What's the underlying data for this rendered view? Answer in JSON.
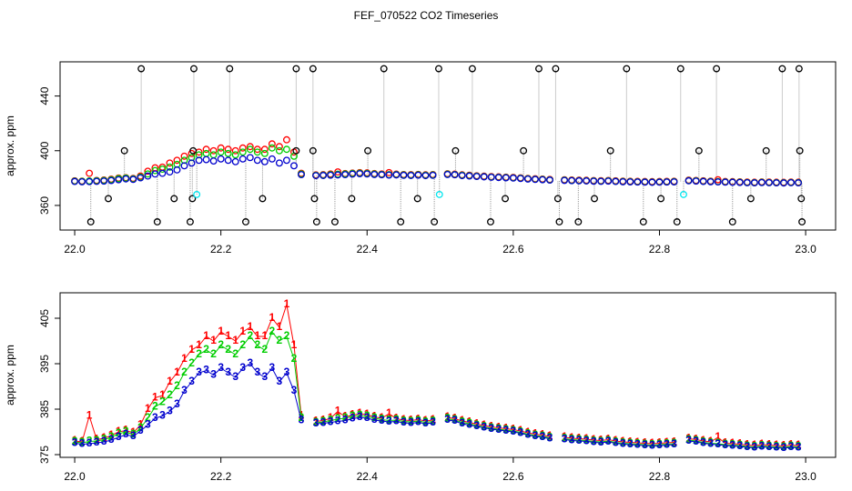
{
  "title": "FEF_070522  CO2 Timeseries",
  "chart_data": [
    {
      "type": "scatter",
      "ylabel": "approx. ppm",
      "xlim": [
        21.98,
        23.041
      ],
      "ylim": [
        342,
        465
      ],
      "xticks": [
        {
          "value": 22.0,
          "label": "22.0"
        },
        {
          "value": 22.2,
          "label": "22.2"
        },
        {
          "value": 22.4,
          "label": "22.4"
        },
        {
          "value": 22.6,
          "label": "22.6"
        },
        {
          "value": 22.8,
          "label": "22.8"
        },
        {
          "value": 23.0,
          "label": "23.0"
        }
      ],
      "yticks": [
        360,
        400,
        440
      ],
      "x": [
        22.0,
        22.01,
        22.02,
        22.03,
        22.04,
        22.05,
        22.06,
        22.07,
        22.08,
        22.09,
        22.1,
        22.11,
        22.12,
        22.13,
        22.14,
        22.15,
        22.16,
        22.17,
        22.18,
        22.19,
        22.2,
        22.21,
        22.22,
        22.23,
        22.24,
        22.25,
        22.26,
        22.27,
        22.28,
        22.29,
        22.3,
        22.31,
        22.32,
        22.33,
        22.34,
        22.35,
        22.36,
        22.37,
        22.38,
        22.39,
        22.4,
        22.41,
        22.42,
        22.43,
        22.44,
        22.45,
        22.46,
        22.47,
        22.48,
        22.49,
        22.5,
        22.51,
        22.52,
        22.53,
        22.54,
        22.55,
        22.56,
        22.57,
        22.58,
        22.59,
        22.6,
        22.61,
        22.62,
        22.63,
        22.64,
        22.65,
        22.66,
        22.67,
        22.68,
        22.69,
        22.7,
        22.71,
        22.72,
        22.73,
        22.74,
        22.75,
        22.76,
        22.77,
        22.78,
        22.79,
        22.8,
        22.81,
        22.82,
        22.83,
        22.84,
        22.85,
        22.86,
        22.87,
        22.88,
        22.89,
        22.9,
        22.91,
        22.92,
        22.93,
        22.94,
        22.95,
        22.96,
        22.97,
        22.98,
        22.99
      ],
      "series": [
        {
          "color": "#ff0000",
          "values": [
            378.0,
            377.8,
            383.5,
            378.3,
            378.6,
            379.2,
            380.0,
            380.3,
            379.8,
            381.5,
            385,
            387.5,
            388,
            391,
            393,
            396,
            398,
            399,
            401,
            400,
            402,
            401,
            400,
            402,
            403,
            401,
            401,
            405,
            403,
            408,
            399,
            383.5,
            null,
            382.3,
            382.5,
            383.0,
            384.5,
            383.3,
            383.7,
            384.0,
            383.8,
            383.3,
            383.0,
            384.0,
            382.9,
            382.6,
            382.5,
            382.7,
            382.4,
            382.6,
            null,
            383.2,
            382.9,
            382.4,
            382.1,
            381.7,
            381.4,
            381.1,
            380.9,
            380.7,
            380.5,
            380.2,
            379.8,
            379.5,
            379.3,
            379.0,
            null,
            378.8,
            378.6,
            378.5,
            378.4,
            378.2,
            378.1,
            378.3,
            378.0,
            377.8,
            377.7,
            377.6,
            377.5,
            377.4,
            377.5,
            377.6,
            377.7,
            null,
            378.5,
            378.3,
            378.0,
            377.8,
            378.8,
            377.5,
            377.4,
            377.3,
            377.1,
            377.0,
            377.2,
            377.1,
            377.0,
            376.9,
            377.1,
            377.0
          ]
        },
        {
          "color": "#00cd00",
          "values": [
            377.8,
            377.6,
            377.9,
            378.0,
            378.3,
            378.8,
            379.6,
            380.0,
            379.4,
            380.8,
            383.0,
            385.5,
            386.5,
            388,
            390,
            393,
            395,
            397,
            398,
            397,
            399,
            398,
            397,
            399,
            401,
            399,
            398,
            402,
            400,
            401,
            396,
            383,
            null,
            382.0,
            382.2,
            382.5,
            382.8,
            383.0,
            383.4,
            383.6,
            383.4,
            383.0,
            382.7,
            382.5,
            382.6,
            382.3,
            382.2,
            382.4,
            382.1,
            382.3,
            null,
            382.9,
            382.6,
            382.1,
            381.8,
            381.4,
            381.1,
            380.8,
            380.6,
            380.4,
            380.2,
            379.9,
            379.5,
            379.2,
            379.0,
            378.7,
            null,
            378.5,
            378.3,
            378.2,
            378.1,
            377.9,
            377.8,
            378.0,
            377.7,
            377.5,
            377.4,
            377.3,
            377.2,
            377.1,
            377.2,
            377.3,
            377.4,
            null,
            378.2,
            378.0,
            377.7,
            377.5,
            377.4,
            377.2,
            377.1,
            377.0,
            376.8,
            376.7,
            376.9,
            376.8,
            376.7,
            376.6,
            376.8,
            376.7
          ]
        },
        {
          "color": "#0000cd",
          "values": [
            377.5,
            377.3,
            377.4,
            377.6,
            377.8,
            378.2,
            378.8,
            379.4,
            379.0,
            380.2,
            381.5,
            383.0,
            383.5,
            384.5,
            386,
            389,
            391,
            393,
            393.5,
            392.5,
            394,
            393,
            392,
            394,
            395,
            393,
            392,
            394,
            391,
            393,
            389,
            382.5,
            null,
            381.8,
            381.9,
            382.1,
            382.3,
            382.5,
            382.9,
            383.2,
            383.0,
            382.6,
            382.4,
            382.2,
            382.3,
            382.0,
            381.9,
            382.1,
            381.8,
            382.0,
            null,
            382.6,
            382.4,
            381.8,
            381.5,
            381.2,
            380.9,
            380.6,
            380.4,
            380.2,
            380.0,
            379.7,
            379.3,
            379.0,
            378.8,
            378.5,
            null,
            378.3,
            378.1,
            378.0,
            377.9,
            377.7,
            377.6,
            377.8,
            377.5,
            377.3,
            377.2,
            377.1,
            377.0,
            376.9,
            377.0,
            377.1,
            377.2,
            null,
            378.0,
            377.8,
            377.5,
            377.3,
            377.2,
            377.0,
            376.9,
            376.8,
            376.6,
            376.5,
            376.7,
            376.6,
            376.5,
            376.4,
            376.6,
            376.5
          ]
        }
      ],
      "outliers": [
        {
          "color": "#000000",
          "x": [
            22.022,
            22.046,
            22.068,
            22.091,
            22.113,
            22.136,
            22.158,
            22.161,
            22.162,
            22.163,
            22.212,
            22.234,
            22.257,
            22.303,
            22.303,
            22.326,
            22.326,
            22.328,
            22.331,
            22.356,
            22.379,
            22.401,
            22.423,
            22.446,
            22.469,
            22.492,
            22.498,
            22.521,
            22.544,
            22.569,
            22.589,
            22.614,
            22.635,
            22.658,
            22.661,
            22.663,
            22.689,
            22.711,
            22.733,
            22.755,
            22.778,
            22.802,
            22.824,
            22.829,
            22.854,
            22.878,
            22.9,
            22.925,
            22.946,
            22.968,
            22.991,
            22.992,
            22.994,
            22.995
          ],
          "values": [
            348,
            365,
            400,
            460,
            348,
            365,
            348,
            365,
            400,
            460,
            460,
            348,
            365,
            460,
            400,
            460,
            400,
            365,
            348,
            348,
            365,
            400,
            460,
            348,
            365,
            348,
            460,
            400,
            460,
            348,
            365,
            400,
            460,
            460,
            365,
            348,
            348,
            365,
            400,
            460,
            348,
            365,
            348,
            460,
            400,
            460,
            348,
            365,
            400,
            460,
            460,
            400,
            365,
            348
          ]
        },
        {
          "color": "#00e5ee",
          "x": [
            22.167,
            22.499,
            22.833
          ],
          "values": [
            368,
            368,
            368
          ]
        }
      ]
    },
    {
      "type": "line",
      "ylabel": "approx. ppm",
      "xlim": [
        21.98,
        23.041
      ],
      "ylim": [
        374.4,
        410.6
      ],
      "xticks": [
        {
          "value": 22.0,
          "label": "22.0"
        },
        {
          "value": 22.2,
          "label": "22.2"
        },
        {
          "value": 22.4,
          "label": "22.4"
        },
        {
          "value": 22.6,
          "label": "22.6"
        },
        {
          "value": 22.8,
          "label": "22.8"
        },
        {
          "value": 23.0,
          "label": "23.0"
        }
      ],
      "yticks": [
        375,
        385,
        395,
        405
      ],
      "x": [
        22.0,
        22.01,
        22.02,
        22.03,
        22.04,
        22.05,
        22.06,
        22.07,
        22.08,
        22.09,
        22.1,
        22.11,
        22.12,
        22.13,
        22.14,
        22.15,
        22.16,
        22.17,
        22.18,
        22.19,
        22.2,
        22.21,
        22.22,
        22.23,
        22.24,
        22.25,
        22.26,
        22.27,
        22.28,
        22.29,
        22.3,
        22.31,
        22.32,
        22.33,
        22.34,
        22.35,
        22.36,
        22.37,
        22.38,
        22.39,
        22.4,
        22.41,
        22.42,
        22.43,
        22.44,
        22.45,
        22.46,
        22.47,
        22.48,
        22.49,
        22.5,
        22.51,
        22.52,
        22.53,
        22.54,
        22.55,
        22.56,
        22.57,
        22.58,
        22.59,
        22.6,
        22.61,
        22.62,
        22.63,
        22.64,
        22.65,
        22.66,
        22.67,
        22.68,
        22.69,
        22.7,
        22.71,
        22.72,
        22.73,
        22.74,
        22.75,
        22.76,
        22.77,
        22.78,
        22.79,
        22.8,
        22.81,
        22.82,
        22.83,
        22.84,
        22.85,
        22.86,
        22.87,
        22.88,
        22.89,
        22.9,
        22.91,
        22.92,
        22.93,
        22.94,
        22.95,
        22.96,
        22.97,
        22.98,
        22.99
      ],
      "series": [
        {
          "name": "1",
          "color": "#ff0000",
          "values": [
            378.0,
            377.8,
            383.5,
            378.3,
            378.6,
            379.2,
            380.0,
            380.3,
            379.8,
            381.5,
            385,
            387.5,
            388,
            391,
            393,
            396,
            398,
            399,
            401,
            400,
            402,
            401,
            400,
            402,
            403,
            401,
            401,
            405,
            403,
            408,
            399,
            383.5,
            null,
            382.3,
            382.5,
            383.0,
            384.5,
            383.3,
            383.7,
            384.0,
            383.8,
            383.3,
            383.0,
            384.0,
            382.9,
            382.6,
            382.5,
            382.7,
            382.4,
            382.6,
            null,
            383.2,
            382.9,
            382.4,
            382.1,
            381.7,
            381.4,
            381.1,
            380.9,
            380.7,
            380.5,
            380.2,
            379.8,
            379.5,
            379.3,
            379.0,
            null,
            378.8,
            378.6,
            378.5,
            378.4,
            378.2,
            378.1,
            378.3,
            378.0,
            377.8,
            377.7,
            377.6,
            377.5,
            377.4,
            377.5,
            377.6,
            377.7,
            null,
            378.5,
            378.3,
            378.0,
            377.8,
            378.8,
            377.5,
            377.4,
            377.3,
            377.1,
            377.0,
            377.2,
            377.1,
            377.0,
            376.9,
            377.1,
            377.0
          ]
        },
        {
          "name": "2",
          "color": "#00cd00",
          "values": [
            377.8,
            377.6,
            377.9,
            378.0,
            378.3,
            378.8,
            379.6,
            380.0,
            379.4,
            380.8,
            383.0,
            385.5,
            386.5,
            388,
            390,
            393,
            395,
            397,
            398,
            397,
            399,
            398,
            397,
            399,
            401,
            399,
            398,
            402,
            400,
            401,
            396,
            383,
            null,
            382.0,
            382.2,
            382.5,
            382.8,
            383.0,
            383.4,
            383.6,
            383.4,
            383.0,
            382.7,
            382.5,
            382.6,
            382.3,
            382.2,
            382.4,
            382.1,
            382.3,
            null,
            382.9,
            382.6,
            382.1,
            381.8,
            381.4,
            381.1,
            380.8,
            380.6,
            380.4,
            380.2,
            379.9,
            379.5,
            379.2,
            379.0,
            378.7,
            null,
            378.5,
            378.3,
            378.2,
            378.1,
            377.9,
            377.8,
            378.0,
            377.7,
            377.5,
            377.4,
            377.3,
            377.2,
            377.1,
            377.2,
            377.3,
            377.4,
            null,
            378.2,
            378.0,
            377.7,
            377.5,
            377.4,
            377.2,
            377.1,
            377.0,
            376.8,
            376.7,
            376.9,
            376.8,
            376.7,
            376.6,
            376.8,
            376.7
          ]
        },
        {
          "name": "3",
          "color": "#0000cd",
          "values": [
            377.5,
            377.3,
            377.4,
            377.6,
            377.8,
            378.2,
            378.8,
            379.4,
            379.0,
            380.2,
            381.5,
            383.0,
            383.5,
            384.5,
            386,
            389,
            391,
            393,
            393.5,
            392.5,
            394,
            393,
            392,
            394,
            395,
            393,
            392,
            394,
            391,
            393,
            389,
            382.5,
            null,
            381.8,
            381.9,
            382.1,
            382.3,
            382.5,
            382.9,
            383.2,
            383.0,
            382.6,
            382.4,
            382.2,
            382.3,
            382.0,
            381.9,
            382.1,
            381.8,
            382.0,
            null,
            382.6,
            382.4,
            381.8,
            381.5,
            381.2,
            380.9,
            380.6,
            380.4,
            380.2,
            380.0,
            379.7,
            379.3,
            379.0,
            378.8,
            378.5,
            null,
            378.3,
            378.1,
            378.0,
            377.9,
            377.7,
            377.6,
            377.8,
            377.5,
            377.3,
            377.2,
            377.1,
            377.0,
            376.9,
            377.0,
            377.1,
            377.2,
            null,
            378.0,
            377.8,
            377.5,
            377.3,
            377.2,
            377.0,
            376.9,
            376.8,
            376.6,
            376.5,
            376.7,
            376.6,
            376.5,
            376.4,
            376.6,
            376.5
          ]
        }
      ]
    }
  ]
}
